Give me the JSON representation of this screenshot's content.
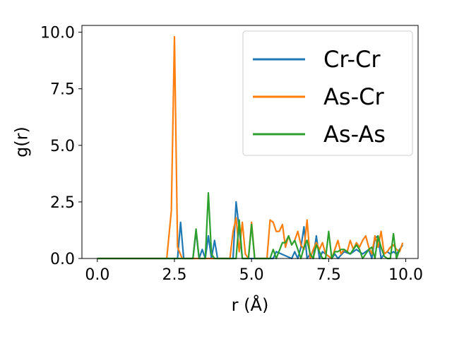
{
  "chart_data": {
    "type": "line",
    "title": "",
    "xlabel": "r (Å)",
    "ylabel": "g(r)",
    "xlim": [
      -0.5,
      10.4
    ],
    "ylim": [
      0,
      10.3
    ],
    "xticks": [
      0.0,
      2.5,
      5.0,
      7.5,
      10.0
    ],
    "xtick_labels": [
      "0.0",
      "2.5",
      "5.0",
      "7.5",
      "10.0"
    ],
    "yticks": [
      0.0,
      2.5,
      5.0,
      7.5,
      10.0
    ],
    "ytick_labels": [
      "0.0",
      "2.5",
      "5.0",
      "7.5",
      "10.0"
    ],
    "grid": false,
    "legend_position": "top-right",
    "series": [
      {
        "name": "Cr-Cr",
        "color": "#1f77b4",
        "x": [
          0.0,
          2.6,
          2.7,
          2.8,
          3.1,
          3.2,
          3.3,
          3.4,
          3.5,
          3.6,
          3.7,
          3.8,
          3.9,
          4.4,
          4.5,
          4.6,
          4.7,
          5.7,
          5.8,
          6.3,
          6.4,
          6.5,
          6.6,
          6.7,
          6.8,
          6.9,
          7.0,
          7.1,
          7.2,
          7.3,
          7.6,
          7.7,
          7.8,
          8.0,
          8.2,
          8.4,
          8.6,
          8.8,
          8.9,
          9.0,
          9.1,
          9.2,
          9.3,
          9.4,
          9.5,
          9.6,
          9.7,
          9.8,
          9.9
        ],
        "values": [
          0.0,
          0.0,
          1.6,
          0.0,
          0.0,
          1.2,
          0.0,
          0.4,
          0.0,
          1.0,
          0.0,
          0.8,
          0.0,
          0.0,
          2.5,
          1.3,
          0.0,
          0.0,
          0.3,
          0.0,
          0.3,
          0.0,
          0.5,
          1.4,
          0.0,
          0.2,
          0.0,
          1.0,
          0.0,
          0.3,
          0.0,
          0.2,
          0.0,
          0.3,
          0.2,
          0.4,
          0.2,
          0.4,
          0.0,
          0.9,
          1.0,
          0.0,
          0.2,
          0.3,
          0.2,
          0.3,
          0.2,
          0.4,
          0.6
        ]
      },
      {
        "name": "As-Cr",
        "color": "#ff7f0e",
        "x": [
          0.0,
          2.25,
          2.4,
          2.5,
          2.6,
          2.75,
          4.3,
          4.4,
          4.5,
          4.6,
          4.7,
          4.8,
          4.9,
          5.0,
          5.1,
          5.5,
          5.6,
          5.7,
          5.8,
          5.9,
          6.0,
          6.1,
          6.2,
          6.3,
          6.4,
          6.5,
          6.6,
          6.7,
          6.8,
          6.9,
          7.0,
          7.1,
          7.2,
          7.3,
          7.4,
          7.6,
          7.8,
          7.9,
          8.0,
          8.1,
          8.2,
          8.3,
          8.4,
          8.5,
          8.6,
          8.7,
          8.8,
          8.9,
          9.0,
          9.1,
          9.2,
          9.3,
          9.4,
          9.5,
          9.6,
          9.7,
          9.8,
          9.9
        ],
        "values": [
          0.0,
          0.0,
          2.1,
          9.8,
          0.5,
          0.0,
          0.0,
          1.2,
          1.8,
          0.3,
          1.6,
          0.2,
          0.0,
          1.6,
          0.0,
          0.0,
          1.7,
          1.6,
          1.2,
          1.2,
          1.5,
          0.5,
          1.0,
          0.6,
          0.8,
          1.2,
          0.6,
          0.4,
          1.7,
          0.0,
          0.4,
          0.7,
          0.4,
          0.7,
          0.2,
          0.0,
          0.8,
          0.2,
          0.4,
          0.3,
          0.8,
          0.4,
          0.7,
          0.5,
          0.8,
          1.0,
          0.5,
          0.2,
          1.0,
          0.5,
          1.2,
          0.2,
          0.3,
          0.5,
          0.6,
          0.4,
          0.3,
          0.7
        ]
      },
      {
        "name": "As-As",
        "color": "#2ca02c",
        "x": [
          0.0,
          3.1,
          3.2,
          3.3,
          3.5,
          3.6,
          3.7,
          3.8,
          4.5,
          4.6,
          4.7,
          4.9,
          5.0,
          5.1,
          5.6,
          5.7,
          5.8,
          6.0,
          6.1,
          6.2,
          6.3,
          6.4,
          6.5,
          6.6,
          6.7,
          6.8,
          6.9,
          7.0,
          7.1,
          7.2,
          7.3,
          7.4,
          7.5,
          7.6,
          7.7,
          7.8,
          7.9,
          8.0,
          8.1,
          8.2,
          8.3,
          8.4,
          8.5,
          8.6,
          8.7,
          8.8,
          8.9,
          9.0,
          9.1,
          9.2,
          9.3,
          9.4,
          9.5,
          9.6,
          9.7,
          9.8
        ],
        "values": [
          0.0,
          0.0,
          1.3,
          0.0,
          0.0,
          2.9,
          0.2,
          0.0,
          0.0,
          1.7,
          0.0,
          0.0,
          1.5,
          0.0,
          0.0,
          0.4,
          0.0,
          0.7,
          0.7,
          1.0,
          0.6,
          0.8,
          0.4,
          0.0,
          0.5,
          0.8,
          0.2,
          0.0,
          0.6,
          0.3,
          0.0,
          0.0,
          1.2,
          0.0,
          0.3,
          0.3,
          0.4,
          0.4,
          0.3,
          0.2,
          0.4,
          0.6,
          0.4,
          0.0,
          0.2,
          0.4,
          0.5,
          0.0,
          1.0,
          0.5,
          0.1,
          0.0,
          0.0,
          1.1,
          0.0,
          0.4
        ]
      }
    ]
  }
}
